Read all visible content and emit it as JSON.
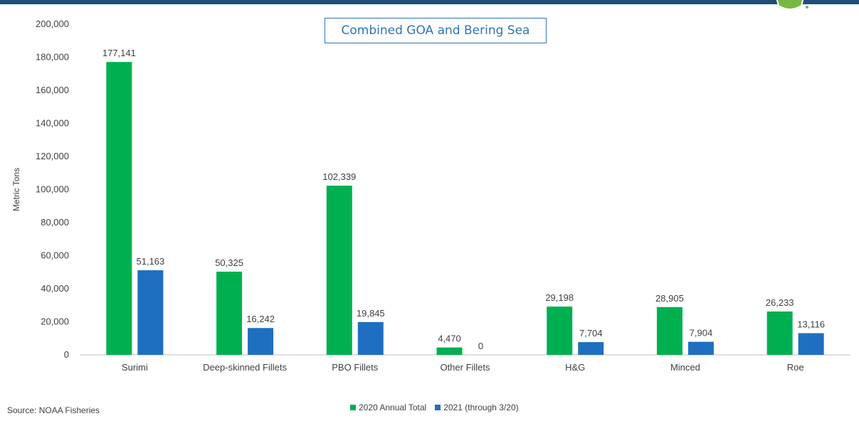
{
  "title": "Combined GOA and Bering Sea",
  "source": "Source: NOAA Fisheries",
  "colors": {
    "series2020": "#00b050",
    "series2021": "#1f6fc0",
    "header": "#1f4e79",
    "badge": "#76b843"
  },
  "chart_data": {
    "type": "bar",
    "title": "Combined GOA and Bering Sea",
    "xlabel": "",
    "ylabel": "Metric Tons",
    "ylim": [
      0,
      200000
    ],
    "yticks": [
      0,
      20000,
      40000,
      60000,
      80000,
      100000,
      120000,
      140000,
      160000,
      180000,
      200000
    ],
    "ytick_labels": [
      "0",
      "20,000",
      "40,000",
      "60,000",
      "80,000",
      "100,000",
      "120,000",
      "140,000",
      "160,000",
      "180,000",
      "200,000"
    ],
    "categories": [
      "Surimi",
      "Deep-skinned Fillets",
      "PBO Fillets",
      "Other Fillets",
      "H&G",
      "Minced",
      "Roe"
    ],
    "series": [
      {
        "name": "2020 Annual Total",
        "color": "#00b050",
        "values": [
          177141,
          50325,
          102339,
          4470,
          29198,
          28905,
          26233
        ],
        "labels": [
          "177,141",
          "50,325",
          "102,339",
          "4,470",
          "29,198",
          "28,905",
          "26,233"
        ]
      },
      {
        "name": "2021 (through 3/20)",
        "color": "#1f6fc0",
        "values": [
          51163,
          16242,
          19845,
          0,
          7704,
          7904,
          13116
        ],
        "labels": [
          "51,163",
          "16,242",
          "19,845",
          "0",
          "7,704",
          "7,904",
          "13,116"
        ]
      }
    ],
    "grid": false,
    "legend": "bottom"
  }
}
